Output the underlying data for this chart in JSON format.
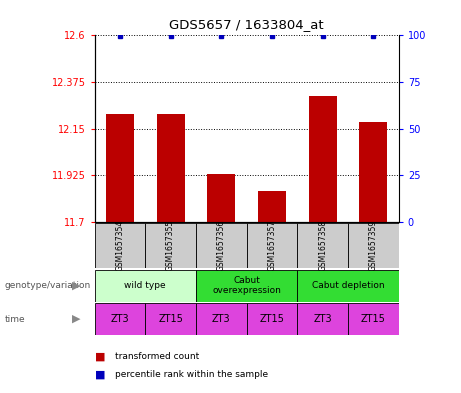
{
  "title": "GDS5657 / 1633804_at",
  "samples": [
    "GSM1657354",
    "GSM1657355",
    "GSM1657356",
    "GSM1657357",
    "GSM1657358",
    "GSM1657359"
  ],
  "bar_values": [
    12.22,
    12.22,
    11.93,
    11.85,
    12.31,
    12.18
  ],
  "ylim_left": [
    11.7,
    12.6
  ],
  "ylim_right": [
    0,
    100
  ],
  "left_ticks": [
    11.7,
    11.925,
    12.15,
    12.375,
    12.6
  ],
  "right_ticks": [
    0,
    25,
    50,
    75,
    100
  ],
  "bar_color": "#bb0000",
  "percentile_color": "#0000bb",
  "genotype_groups": [
    {
      "label": "wild type",
      "start": 0,
      "end": 2,
      "color": "#ccffcc"
    },
    {
      "label": "Cabut\noverexpression",
      "start": 2,
      "end": 4,
      "color": "#33dd33"
    },
    {
      "label": "Cabut depletion",
      "start": 4,
      "end": 6,
      "color": "#33dd33"
    }
  ],
  "time_labels": [
    "ZT3",
    "ZT15",
    "ZT3",
    "ZT15",
    "ZT3",
    "ZT15"
  ],
  "time_color": "#dd44dd",
  "sample_bg_color": "#cccccc",
  "legend_red_label": "transformed count",
  "legend_blue_label": "percentile rank within the sample",
  "genotype_label": "genotype/variation",
  "time_label": "time",
  "bar_width": 0.55
}
